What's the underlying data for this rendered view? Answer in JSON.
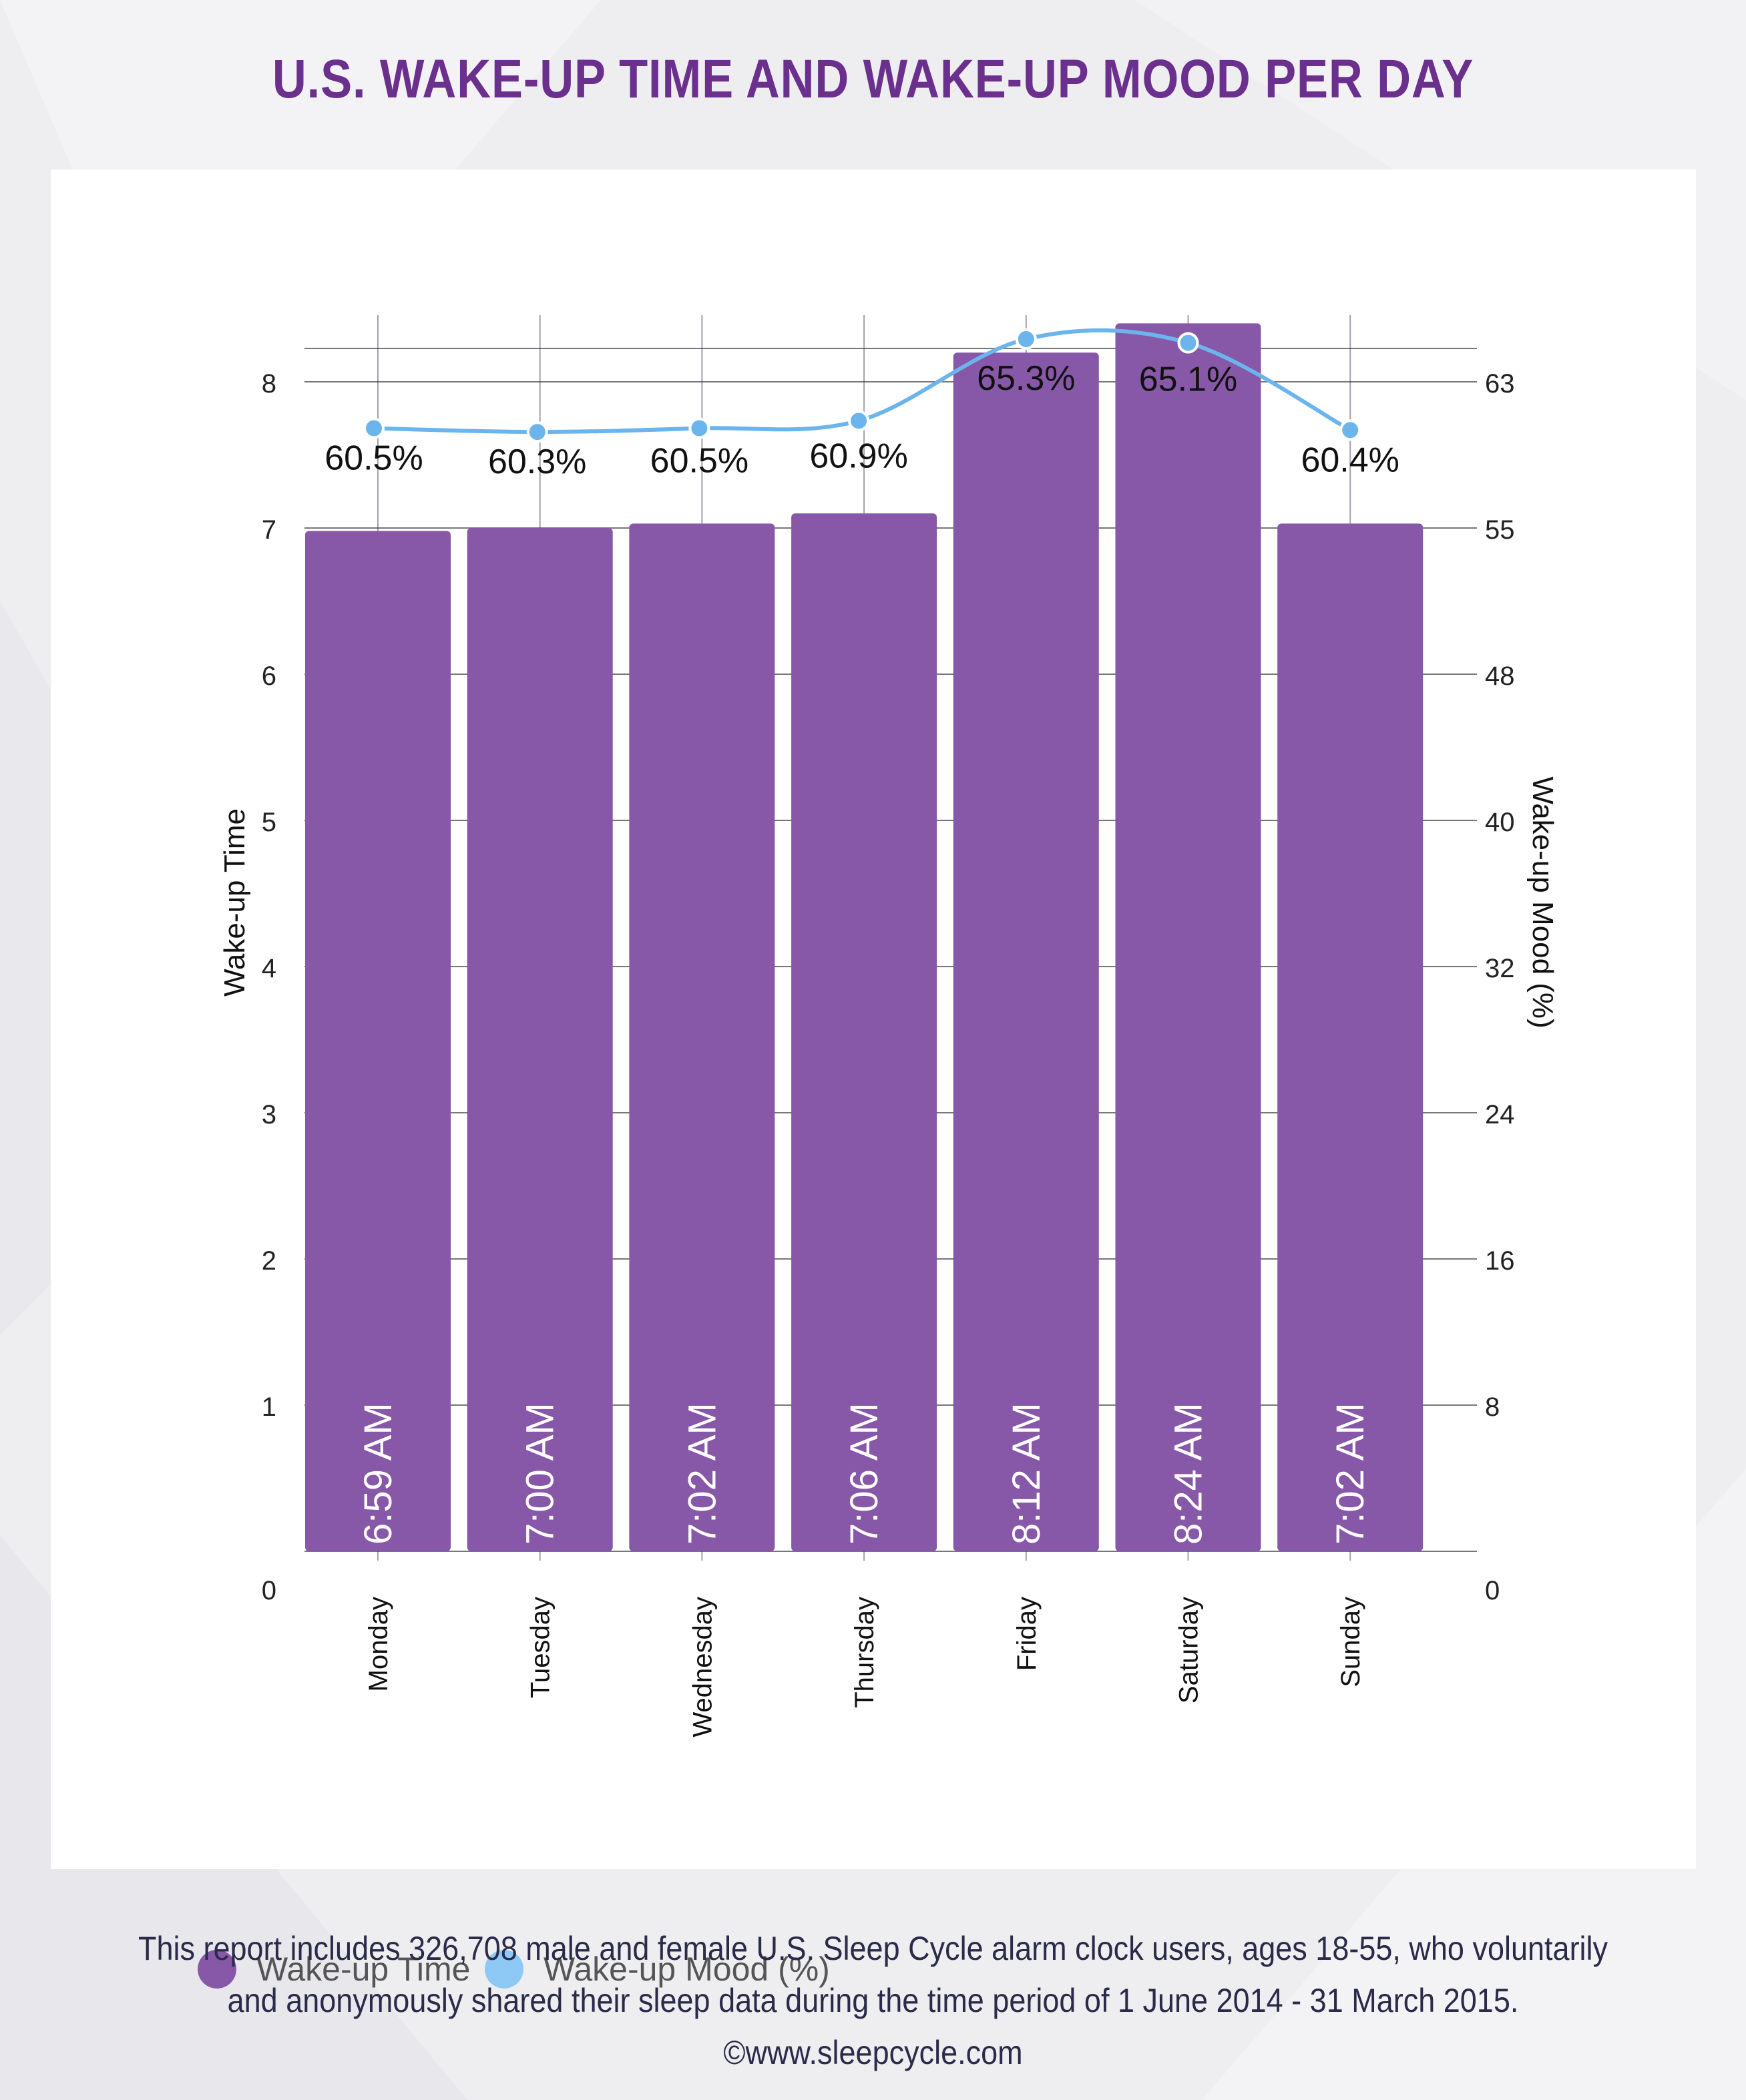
{
  "title": "U.S. WAKE-UP TIME AND WAKE-UP MOOD PER DAY",
  "chart_data": {
    "type": "bar",
    "categories": [
      "Monday",
      "Tuesday",
      "Wednesday",
      "Thursday",
      "Friday",
      "Saturday",
      "Sunday"
    ],
    "series": [
      {
        "name": "Wake-up Time",
        "type": "bar",
        "axis": "left",
        "color": "#8757a8",
        "values": [
          6.98,
          7.0,
          7.03,
          7.1,
          8.2,
          8.4,
          7.03
        ],
        "labels": [
          "6:59 AM",
          "7:00 AM",
          "7:02 AM",
          "7:06 AM",
          "8:12 AM",
          "8:24 AM",
          "7:02 AM"
        ]
      },
      {
        "name": "Wake-up Mood (%)",
        "type": "line",
        "axis": "right",
        "color": "#6cb5ec",
        "values": [
          60.5,
          60.3,
          60.5,
          60.9,
          65.3,
          65.1,
          60.4
        ],
        "labels": [
          "60.5%",
          "60.3%",
          "60.5%",
          "60.9%",
          "65.3%",
          "65.1%",
          "60.4%"
        ]
      }
    ],
    "ylabel": "Wake-up Time",
    "y2label": "Wake-up Mood (%)",
    "ylim": [
      0,
      8
    ],
    "y2lim": [
      0,
      63
    ],
    "yticks": [
      "0",
      "1",
      "2",
      "3",
      "4",
      "5",
      "6",
      "7",
      "8"
    ],
    "y2ticks": [
      "0",
      "8",
      "16",
      "24",
      "32",
      "40",
      "48",
      "55",
      "63"
    ],
    "grid": true,
    "legend": "bottom-left"
  },
  "legend": [
    {
      "label": "Wake-up Time",
      "color": "#8757a8"
    },
    {
      "label": "Wake-up Mood (%)",
      "color": "#8ec9f5"
    }
  ],
  "footer": {
    "line1": "This report includes 326,708 male and female U.S. Sleep Cycle alarm clock users, ages 18-55, who voluntarily",
    "line2": "and anonymously shared their sleep data during the time period of 1 June 2014 - 31 March 2015.",
    "line3": "©www.sleepcycle.com"
  }
}
